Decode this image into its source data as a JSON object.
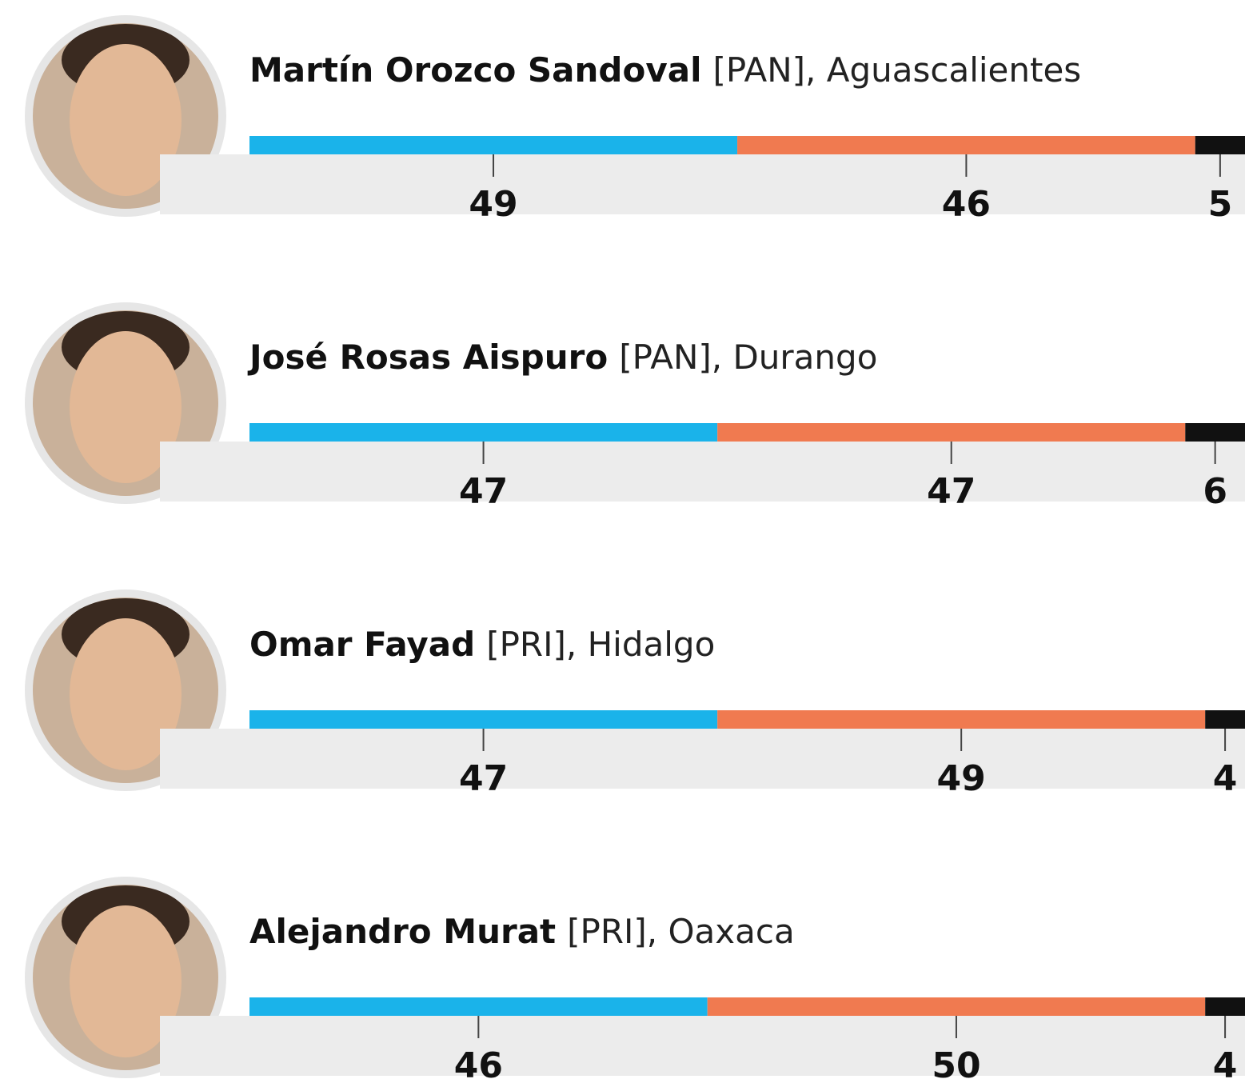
{
  "chart_data": {
    "type": "stacked-bar",
    "categories": [
      "Martín Orozco Sandoval",
      "José Rosas Aispuro",
      "Omar Fayad",
      "Alejandro Murat"
    ],
    "category_details": [
      "[PAN], Aguascalientes",
      "[PAN], Durango",
      "[PRI], Hidalgo",
      "[PRI], Oaxaca"
    ],
    "series": [
      {
        "color": "#1ab3ea",
        "values": [
          49,
          47,
          47,
          46
        ]
      },
      {
        "color": "#f07a50",
        "values": [
          46,
          47,
          49,
          50
        ]
      },
      {
        "color": "#111111",
        "values": [
          5,
          6,
          4,
          4
        ]
      }
    ],
    "xlim": [
      0,
      100
    ]
  }
}
